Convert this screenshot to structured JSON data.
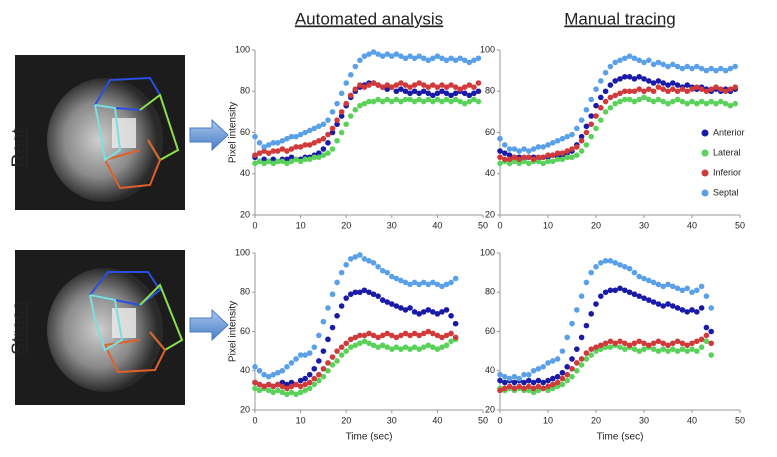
{
  "row_labels": [
    "Rest",
    "Stress"
  ],
  "chart_data": [
    {
      "type": "scatter",
      "title": "Automated analysis",
      "ylabel": "Pixel intensity",
      "xlim": [
        0,
        50
      ],
      "xticks": [
        0,
        10,
        20,
        30,
        40,
        50
      ],
      "ylim": [
        20,
        100
      ],
      "yticks": [
        20,
        40,
        60,
        80,
        100
      ],
      "x": [
        0,
        1,
        2,
        3,
        4,
        5,
        6,
        7,
        8,
        9,
        10,
        11,
        12,
        13,
        14,
        15,
        16,
        17,
        18,
        19,
        20,
        21,
        22,
        23,
        24,
        25,
        26,
        27,
        28,
        29,
        30,
        31,
        32,
        33,
        34,
        35,
        36,
        37,
        38,
        39,
        40,
        41,
        42,
        43,
        44,
        45,
        46,
        47,
        48,
        49
      ],
      "series": [
        {
          "color": "#1a1aa8",
          "values": [
            48,
            46,
            47,
            46,
            47,
            46,
            47,
            47,
            48,
            47,
            47,
            48,
            48,
            49,
            50,
            52,
            55,
            60,
            64,
            68,
            73,
            77,
            80,
            82,
            83,
            84,
            84,
            83,
            82,
            81,
            82,
            80,
            81,
            80,
            79,
            80,
            79,
            80,
            79,
            78,
            79,
            80,
            79,
            78,
            79,
            80,
            79,
            78,
            79,
            80
          ]
        },
        {
          "color": "#5ad25a",
          "values": [
            45,
            46,
            45,
            46,
            45,
            46,
            46,
            45,
            46,
            47,
            46,
            47,
            47,
            48,
            48,
            49,
            50,
            52,
            56,
            60,
            64,
            68,
            71,
            73,
            74,
            75,
            75,
            76,
            75,
            76,
            75,
            76,
            75,
            76,
            76,
            75,
            76,
            75,
            76,
            75,
            76,
            75,
            76,
            75,
            76,
            75,
            74,
            75,
            76,
            75
          ]
        },
        {
          "color": "#d03a3a",
          "values": [
            49,
            50,
            51,
            50,
            51,
            51,
            52,
            51,
            52,
            53,
            53,
            54,
            54,
            55,
            56,
            57,
            59,
            62,
            66,
            70,
            74,
            78,
            81,
            83,
            82,
            83,
            84,
            83,
            82,
            83,
            82,
            83,
            84,
            83,
            82,
            83,
            84,
            83,
            82,
            83,
            82,
            83,
            82,
            83,
            82,
            81,
            82,
            83,
            82,
            84
          ]
        },
        {
          "color": "#5aa0e8",
          "values": [
            58,
            55,
            53,
            54,
            55,
            55,
            56,
            57,
            58,
            58,
            59,
            60,
            61,
            62,
            63,
            64,
            66,
            70,
            74,
            79,
            84,
            88,
            92,
            95,
            97,
            98,
            99,
            98,
            97,
            98,
            97,
            98,
            97,
            96,
            97,
            96,
            97,
            96,
            95,
            96,
            97,
            96,
            95,
            96,
            95,
            96,
            95,
            94,
            95,
            96
          ]
        }
      ]
    },
    {
      "type": "scatter",
      "title": "Manual tracing",
      "legend": "right",
      "xlim": [
        0,
        50
      ],
      "xticks": [
        0,
        10,
        20,
        30,
        40,
        50
      ],
      "ylim": [
        20,
        100
      ],
      "yticks": [
        20,
        40,
        60,
        80,
        100
      ],
      "x": [
        0,
        1,
        2,
        3,
        4,
        5,
        6,
        7,
        8,
        9,
        10,
        11,
        12,
        13,
        14,
        15,
        16,
        17,
        18,
        19,
        20,
        21,
        22,
        23,
        24,
        25,
        26,
        27,
        28,
        29,
        30,
        31,
        32,
        33,
        34,
        35,
        36,
        37,
        38,
        39,
        40,
        41,
        42,
        43,
        44,
        45,
        46,
        47,
        48,
        49
      ],
      "series": [
        {
          "name": "Anterior",
          "color": "#1a1aa8",
          "values": [
            51,
            50,
            49,
            48,
            48,
            47,
            48,
            48,
            47,
            48,
            48,
            49,
            48,
            49,
            50,
            51,
            54,
            58,
            63,
            68,
            73,
            77,
            80,
            83,
            85,
            86,
            87,
            87,
            86,
            87,
            86,
            85,
            84,
            85,
            84,
            83,
            84,
            83,
            82,
            83,
            82,
            81,
            82,
            81,
            80,
            81,
            80,
            81,
            80,
            81
          ]
        },
        {
          "name": "Lateral",
          "color": "#5ad25a",
          "values": [
            45,
            46,
            45,
            46,
            45,
            46,
            45,
            46,
            46,
            45,
            46,
            46,
            47,
            47,
            48,
            48,
            49,
            51,
            54,
            58,
            62,
            66,
            70,
            72,
            74,
            75,
            76,
            76,
            75,
            76,
            77,
            76,
            75,
            76,
            75,
            74,
            75,
            76,
            75,
            74,
            75,
            74,
            75,
            74,
            75,
            74,
            75,
            74,
            73,
            74
          ]
        },
        {
          "name": "Inferior",
          "color": "#d03a3a",
          "values": [
            48,
            47,
            47,
            48,
            47,
            48,
            48,
            47,
            48,
            48,
            49,
            49,
            50,
            50,
            51,
            52,
            53,
            56,
            60,
            64,
            68,
            72,
            75,
            77,
            78,
            79,
            80,
            80,
            80,
            81,
            80,
            81,
            80,
            82,
            81,
            80,
            81,
            80,
            81,
            80,
            81,
            82,
            81,
            80,
            81,
            82,
            81,
            80,
            81,
            82
          ]
        },
        {
          "name": "Septal",
          "color": "#5aa0e8",
          "values": [
            57,
            54,
            52,
            52,
            51,
            52,
            51,
            52,
            53,
            53,
            54,
            55,
            56,
            57,
            58,
            59,
            62,
            66,
            71,
            76,
            81,
            85,
            89,
            92,
            94,
            95,
            96,
            97,
            96,
            95,
            94,
            95,
            93,
            94,
            93,
            92,
            93,
            92,
            91,
            92,
            91,
            92,
            91,
            90,
            91,
            90,
            91,
            90,
            91,
            92
          ]
        }
      ]
    },
    {
      "type": "scatter",
      "ylabel": "Pixel intensity",
      "xlabel": "Time (sec)",
      "xlim": [
        0,
        50
      ],
      "xticks": [
        0,
        10,
        20,
        30,
        40,
        50
      ],
      "ylim": [
        20,
        100
      ],
      "yticks": [
        20,
        40,
        60,
        80,
        100
      ],
      "x": [
        0,
        1,
        2,
        3,
        4,
        5,
        6,
        7,
        8,
        9,
        10,
        11,
        12,
        13,
        14,
        15,
        16,
        17,
        18,
        19,
        20,
        21,
        22,
        23,
        24,
        25,
        26,
        27,
        28,
        29,
        30,
        31,
        32,
        33,
        34,
        35,
        36,
        37,
        38,
        39,
        40,
        41,
        42,
        43,
        44
      ],
      "series": [
        {
          "color": "#1a1aa8",
          "values": [
            34,
            33,
            32,
            33,
            32,
            33,
            34,
            33,
            34,
            33,
            35,
            36,
            38,
            41,
            45,
            50,
            56,
            62,
            68,
            73,
            77,
            79,
            80,
            80,
            81,
            80,
            79,
            78,
            76,
            75,
            74,
            73,
            72,
            71,
            72,
            70,
            69,
            70,
            71,
            70,
            69,
            70,
            71,
            68,
            64
          ]
        },
        {
          "color": "#5ad25a",
          "values": [
            31,
            30,
            31,
            30,
            29,
            30,
            29,
            28,
            29,
            28,
            29,
            30,
            31,
            33,
            35,
            37,
            40,
            43,
            45,
            48,
            50,
            52,
            53,
            54,
            55,
            54,
            53,
            52,
            53,
            52,
            51,
            52,
            51,
            52,
            51,
            52,
            51,
            52,
            53,
            52,
            51,
            52,
            53,
            55,
            56
          ]
        },
        {
          "color": "#d03a3a",
          "values": [
            34,
            33,
            32,
            33,
            32,
            33,
            32,
            31,
            32,
            33,
            32,
            33,
            34,
            36,
            38,
            41,
            44,
            47,
            50,
            52,
            54,
            56,
            57,
            58,
            58,
            59,
            58,
            57,
            58,
            59,
            58,
            57,
            58,
            59,
            58,
            59,
            58,
            59,
            60,
            59,
            58,
            57,
            58,
            59,
            57
          ]
        },
        {
          "color": "#5aa0e8",
          "values": [
            42,
            40,
            38,
            37,
            38,
            39,
            40,
            42,
            44,
            46,
            48,
            48,
            49,
            52,
            58,
            65,
            72,
            79,
            85,
            90,
            94,
            97,
            98,
            99,
            97,
            96,
            95,
            93,
            91,
            90,
            88,
            87,
            86,
            85,
            84,
            85,
            84,
            85,
            84,
            85,
            84,
            83,
            84,
            85,
            87
          ]
        }
      ]
    },
    {
      "type": "scatter",
      "xlabel": "Time (sec)",
      "xlim": [
        0,
        50
      ],
      "xticks": [
        0,
        10,
        20,
        30,
        40,
        50
      ],
      "ylim": [
        20,
        100
      ],
      "yticks": [
        20,
        40,
        60,
        80,
        100
      ],
      "x": [
        0,
        1,
        2,
        3,
        4,
        5,
        6,
        7,
        8,
        9,
        10,
        11,
        12,
        13,
        14,
        15,
        16,
        17,
        18,
        19,
        20,
        21,
        22,
        23,
        24,
        25,
        26,
        27,
        28,
        29,
        30,
        31,
        32,
        33,
        34,
        35,
        36,
        37,
        38,
        39,
        40,
        41,
        42,
        43,
        44
      ],
      "series": [
        {
          "color": "#1a1aa8",
          "values": [
            35,
            34,
            35,
            34,
            35,
            34,
            35,
            34,
            35,
            34,
            35,
            36,
            37,
            39,
            42,
            46,
            51,
            57,
            63,
            69,
            74,
            78,
            80,
            81,
            81,
            82,
            81,
            80,
            79,
            78,
            77,
            76,
            75,
            74,
            73,
            74,
            73,
            72,
            71,
            70,
            71,
            70,
            72,
            62,
            60
          ]
        },
        {
          "color": "#5ad25a",
          "values": [
            31,
            30,
            31,
            30,
            31,
            30,
            30,
            29,
            30,
            31,
            30,
            31,
            32,
            33,
            35,
            37,
            40,
            43,
            46,
            48,
            50,
            51,
            52,
            52,
            53,
            52,
            51,
            52,
            51,
            50,
            51,
            52,
            51,
            50,
            51,
            50,
            51,
            50,
            51,
            50,
            51,
            50,
            52,
            55,
            48
          ]
        },
        {
          "color": "#d03a3a",
          "values": [
            30,
            31,
            32,
            31,
            32,
            31,
            32,
            31,
            32,
            31,
            32,
            33,
            34,
            36,
            38,
            41,
            44,
            46,
            49,
            51,
            52,
            53,
            54,
            55,
            54,
            55,
            54,
            53,
            54,
            55,
            54,
            53,
            54,
            55,
            54,
            53,
            54,
            55,
            54,
            53,
            54,
            55,
            56,
            58,
            54
          ]
        },
        {
          "color": "#5aa0e8",
          "values": [
            38,
            37,
            36,
            37,
            36,
            38,
            38,
            40,
            41,
            42,
            44,
            45,
            46,
            50,
            57,
            64,
            71,
            78,
            85,
            90,
            93,
            95,
            96,
            96,
            95,
            94,
            93,
            92,
            90,
            88,
            87,
            86,
            85,
            84,
            83,
            84,
            83,
            82,
            81,
            82,
            80,
            81,
            83,
            78,
            72
          ]
        }
      ]
    }
  ]
}
